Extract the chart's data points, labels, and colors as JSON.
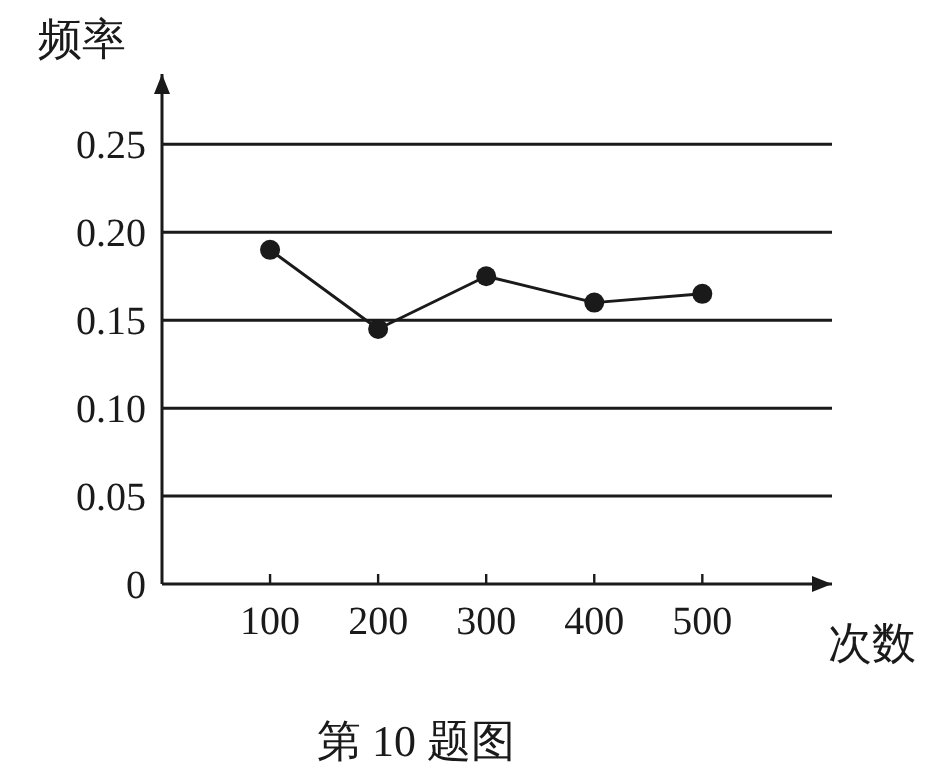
{
  "chart_data": {
    "type": "line",
    "xlabel": "次数",
    "ylabel": "频率",
    "x": [
      100,
      200,
      300,
      400,
      500
    ],
    "values": [
      0.19,
      0.145,
      0.175,
      0.16,
      0.165
    ],
    "color": "#1a1a1a",
    "marker": "circle",
    "line_style": "solid",
    "xlim": [
      0,
      620
    ],
    "xticks": [
      100,
      200,
      300,
      400,
      500
    ],
    "ylim": [
      0,
      0.29
    ],
    "yticks": [
      {
        "value": 0,
        "label": "0"
      },
      {
        "value": 0.05,
        "label": "0.05"
      },
      {
        "value": 0.1,
        "label": "0.10"
      },
      {
        "value": 0.15,
        "label": "0.15"
      },
      {
        "value": 0.2,
        "label": "0.20"
      },
      {
        "value": 0.25,
        "label": "0.25"
      }
    ],
    "grid": "y",
    "annotations": [
      "第 10 题图"
    ]
  }
}
